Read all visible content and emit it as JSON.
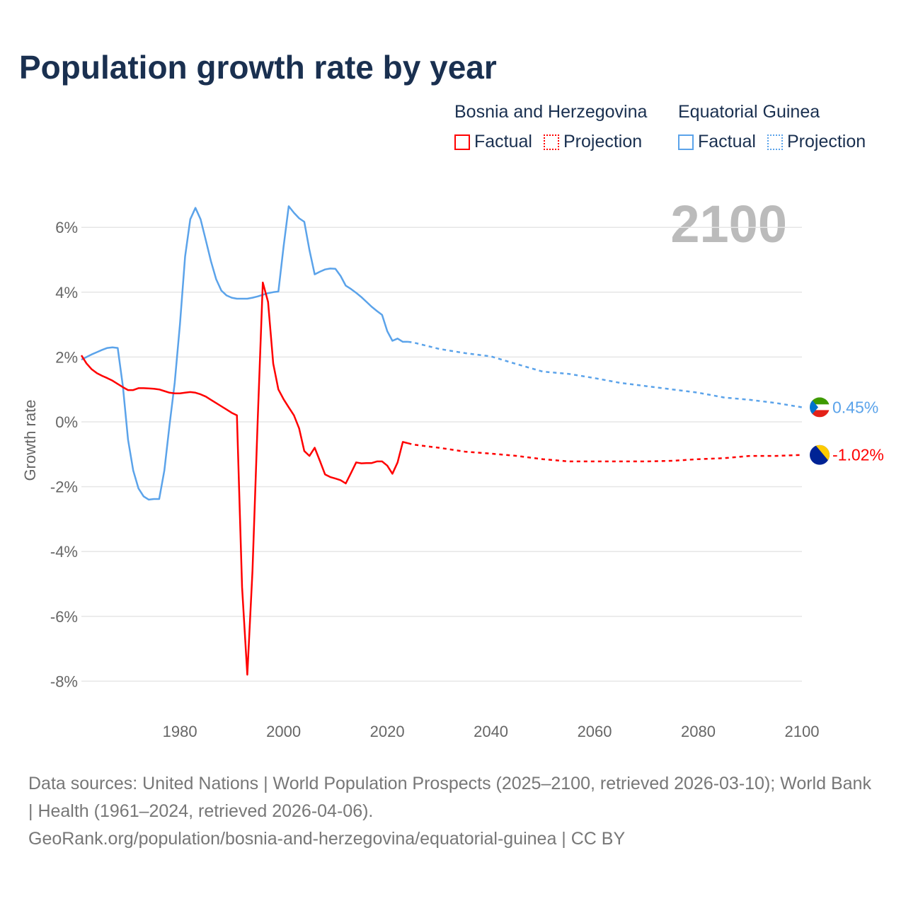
{
  "title": "Population growth rate by year",
  "legend": {
    "groups": [
      {
        "country": "Bosnia and Herzegovina",
        "factual": "Factual",
        "projection": "Projection",
        "color": "#ff0000"
      },
      {
        "country": "Equatorial Guinea",
        "factual": "Factual",
        "projection": "Projection",
        "color": "#5ba3ea"
      }
    ]
  },
  "year_label": "2100",
  "footer": {
    "sources": "Data sources: United Nations | World Population Prospects (2025–2100, retrieved 2026-03-10); World Bank | Health (1961–2024, retrieved 2026-04-06).",
    "link": "GeoRank.org/population/bosnia-and-herzegovina/equatorial-guinea | CC BY"
  },
  "chart_data": {
    "type": "line",
    "title": "Population growth rate by year",
    "xlabel": "",
    "ylabel": "Growth rate",
    "xlim": [
      1961,
      2100
    ],
    "ylim": [
      -8.5,
      7
    ],
    "xticks": [
      1980,
      2000,
      2020,
      2040,
      2060,
      2080,
      2100
    ],
    "xtick_labels": [
      "1980",
      "2000",
      "2020",
      "2040",
      "2060",
      "2080",
      "2100"
    ],
    "yticks": [
      6,
      4,
      2,
      0,
      -2,
      -4,
      -6,
      -8
    ],
    "ytick_labels": [
      "6%",
      "4%",
      "2%",
      "0%",
      "-2%",
      "-4%",
      "-6%",
      "-8%"
    ],
    "grid": true,
    "legend_position": "top-right",
    "series": [
      {
        "name": "Bosnia and Herzegovina",
        "color": "#ff0000",
        "end_label": "-1.02%",
        "flag": "bosnia-flag-icon",
        "factual": {
          "x": [
            1961,
            1962,
            1963,
            1964,
            1965,
            1966,
            1967,
            1968,
            1969,
            1970,
            1971,
            1972,
            1973,
            1974,
            1975,
            1976,
            1977,
            1978,
            1979,
            1980,
            1981,
            1982,
            1983,
            1984,
            1985,
            1986,
            1987,
            1988,
            1989,
            1990,
            1991,
            1992,
            1993,
            1994,
            1995,
            1996,
            1997,
            1998,
            1999,
            2000,
            2001,
            2002,
            2003,
            2004,
            2005,
            2006,
            2007,
            2008,
            2009,
            2010,
            2011,
            2012,
            2013,
            2014,
            2015,
            2016,
            2017,
            2018,
            2019,
            2020,
            2021,
            2022,
            2023,
            2024
          ],
          "y": [
            2.05,
            1.8,
            1.62,
            1.5,
            1.42,
            1.35,
            1.27,
            1.17,
            1.07,
            0.98,
            0.98,
            1.04,
            1.04,
            1.03,
            1.02,
            1.0,
            0.95,
            0.9,
            0.88,
            0.88,
            0.9,
            0.92,
            0.9,
            0.85,
            0.78,
            0.68,
            0.58,
            0.48,
            0.38,
            0.28,
            0.2,
            -5.1,
            -7.8,
            -4.6,
            0.0,
            4.3,
            3.7,
            1.8,
            1.0,
            0.7,
            0.45,
            0.2,
            -0.2,
            -0.9,
            -1.05,
            -0.8,
            -1.2,
            -1.62,
            -1.7,
            -1.75,
            -1.8,
            -1.9,
            -1.58,
            -1.25,
            -1.28,
            -1.27,
            -1.27,
            -1.22,
            -1.22,
            -1.35,
            -1.6,
            -1.25,
            -0.62,
            -0.66
          ]
        },
        "projection": {
          "x": [
            2024,
            2025,
            2030,
            2035,
            2040,
            2045,
            2050,
            2055,
            2060,
            2065,
            2070,
            2075,
            2080,
            2085,
            2090,
            2095,
            2100
          ],
          "y": [
            -0.66,
            -0.7,
            -0.8,
            -0.92,
            -0.98,
            -1.05,
            -1.15,
            -1.22,
            -1.22,
            -1.22,
            -1.22,
            -1.2,
            -1.15,
            -1.12,
            -1.05,
            -1.05,
            -1.02
          ]
        }
      },
      {
        "name": "Equatorial Guinea",
        "color": "#5ba3ea",
        "end_label": "0.45%",
        "flag": "equatorial-guinea-flag-icon",
        "factual": {
          "x": [
            1961,
            1962,
            1963,
            1964,
            1965,
            1966,
            1967,
            1968,
            1969,
            1970,
            1971,
            1972,
            1973,
            1974,
            1975,
            1976,
            1977,
            1978,
            1979,
            1980,
            1981,
            1982,
            1983,
            1984,
            1985,
            1986,
            1987,
            1988,
            1989,
            1990,
            1991,
            1992,
            1993,
            1994,
            1995,
            1996,
            1997,
            1998,
            1999,
            2000,
            2001,
            2002,
            2003,
            2004,
            2005,
            2006,
            2007,
            2008,
            2009,
            2010,
            2011,
            2012,
            2013,
            2014,
            2015,
            2016,
            2017,
            2018,
            2019,
            2020,
            2021,
            2022,
            2023,
            2024
          ],
          "y": [
            1.92,
            2.0,
            2.08,
            2.15,
            2.22,
            2.28,
            2.3,
            2.28,
            1.1,
            -0.55,
            -1.5,
            -2.05,
            -2.3,
            -2.4,
            -2.38,
            -2.38,
            -1.5,
            -0.1,
            1.2,
            3.0,
            5.1,
            6.25,
            6.6,
            6.25,
            5.6,
            4.95,
            4.4,
            4.05,
            3.9,
            3.83,
            3.8,
            3.8,
            3.8,
            3.83,
            3.87,
            3.92,
            3.97,
            4.0,
            4.02,
            5.4,
            6.65,
            6.45,
            6.28,
            6.17,
            5.3,
            4.55,
            4.63,
            4.7,
            4.73,
            4.72,
            4.5,
            4.2,
            4.1,
            3.98,
            3.85,
            3.7,
            3.55,
            3.42,
            3.3,
            2.8,
            2.5,
            2.57,
            2.47,
            2.47
          ]
        },
        "projection": {
          "x": [
            2024,
            2025,
            2030,
            2035,
            2040,
            2045,
            2050,
            2055,
            2060,
            2065,
            2070,
            2075,
            2080,
            2085,
            2090,
            2095,
            2100
          ],
          "y": [
            2.47,
            2.45,
            2.25,
            2.12,
            2.02,
            1.78,
            1.55,
            1.48,
            1.35,
            1.2,
            1.1,
            1.0,
            0.9,
            0.75,
            0.68,
            0.58,
            0.45
          ]
        }
      }
    ]
  }
}
